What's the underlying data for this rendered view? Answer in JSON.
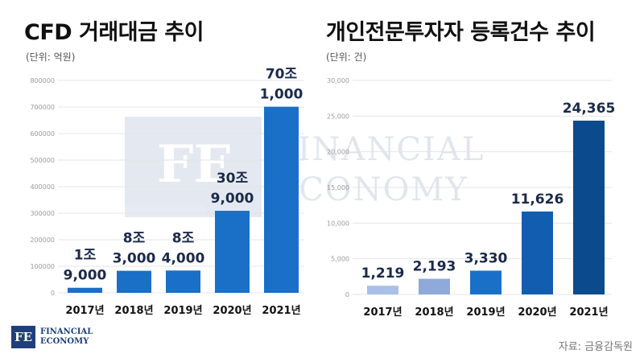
{
  "left": {
    "title": "CFD 거래대금 추이",
    "unit": "(단위: 억원)"
  },
  "right": {
    "title": "개인전문투자자 등록건수 추이",
    "unit": "(단위: 건)"
  },
  "source": "자료: 금융감독원",
  "logo": {
    "mark": "FE",
    "line1": "FINANCIAL",
    "line2": "ECONOMY"
  },
  "watermark": {
    "mark": "FE",
    "line1": "FINANCIAL",
    "line2": "ECONOMY"
  },
  "colors": {
    "left_bar": "#1a6fc7",
    "grid": "#e4e4e4",
    "label": "#1b2a4a",
    "right_bars": [
      "#a9c1e6",
      "#8fa9da",
      "#1a6fc7",
      "#135db0",
      "#0b4a8c"
    ]
  },
  "chart_data": [
    {
      "type": "bar",
      "title": "CFD 거래대금 추이",
      "ylabel": "(단위: 억원)",
      "categories": [
        "2017년",
        "2018년",
        "2019년",
        "2020년",
        "2021년"
      ],
      "values": [
        19000,
        83000,
        84000,
        309000,
        701000
      ],
      "labels": [
        [
          "1조",
          "9,000"
        ],
        [
          "8조",
          "3,000"
        ],
        [
          "8조",
          "4,000"
        ],
        [
          "30조",
          "9,000"
        ],
        [
          "70조",
          "1,000"
        ]
      ],
      "ylim": [
        0,
        800000
      ],
      "yticks": [
        0,
        100000,
        200000,
        300000,
        400000,
        500000,
        600000,
        700000,
        800000
      ],
      "ytick_labels": [
        "0",
        "100000",
        "200000",
        "300000",
        "400000",
        "500000",
        "600000",
        "700000",
        "800000"
      ],
      "grid": true
    },
    {
      "type": "bar",
      "title": "개인전문투자자 등록건수 추이",
      "ylabel": "(단위: 건)",
      "categories": [
        "2017년",
        "2018년",
        "2019년",
        "2020년",
        "2021년"
      ],
      "values": [
        1219,
        2193,
        3330,
        11626,
        24365
      ],
      "labels": [
        [
          "1,219"
        ],
        [
          "2,193"
        ],
        [
          "3,330"
        ],
        [
          "11,626"
        ],
        [
          "24,365"
        ]
      ],
      "ylim": [
        0,
        30000
      ],
      "yticks": [
        0,
        5000,
        10000,
        15000,
        20000,
        25000,
        30000
      ],
      "ytick_labels": [
        "0",
        "5,000",
        "10,000",
        "15,000",
        "20,000",
        "25,000",
        "30,000"
      ],
      "grid": true
    }
  ]
}
